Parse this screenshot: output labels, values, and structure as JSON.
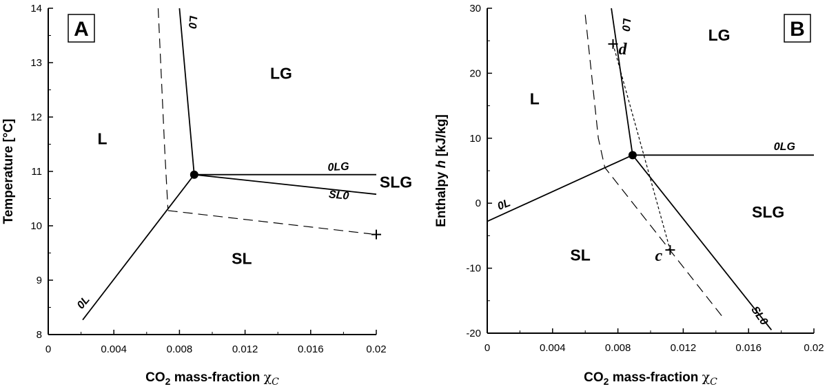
{
  "chart_data": [
    {
      "type": "line",
      "panel_label": "A",
      "xlabel": {
        "prefix": "CO",
        "sub": "2",
        "text": " mass-fraction  ",
        "symbol": "χ",
        "symbol_sub": "C"
      },
      "ylabel": "Temperature [°C]",
      "xlim": [
        0,
        0.02
      ],
      "ylim": [
        8,
        14
      ],
      "xticks": [
        0,
        0.004,
        0.008,
        0.012,
        0.016,
        0.02
      ],
      "xtick_labels": [
        "0",
        "0.004",
        "0.008",
        "0.012",
        "0.016",
        "0.02"
      ],
      "yticks": [
        8,
        9,
        10,
        11,
        12,
        13,
        14
      ],
      "ytick_labels": [
        "8",
        "9",
        "10",
        "11",
        "12",
        "13",
        "14"
      ],
      "series": [
        {
          "name": "L0",
          "style": "solid",
          "x": [
            0.0089,
            0.008
          ],
          "y": [
            10.94,
            14.0
          ]
        },
        {
          "name": "0L",
          "style": "solid",
          "x": [
            0.0089,
            0.0021
          ],
          "y": [
            10.94,
            8.27
          ]
        },
        {
          "name": "0LG",
          "style": "solid",
          "x": [
            0.0089,
            0.02
          ],
          "y": [
            10.94,
            10.94
          ]
        },
        {
          "name": "SL0",
          "style": "solid",
          "x": [
            0.0089,
            0.02
          ],
          "y": [
            10.94,
            10.58
          ]
        },
        {
          "name": "dashed-1",
          "style": "dashed",
          "x": [
            0.0067,
            0.0071,
            0.0073
          ],
          "y": [
            14.0,
            11.4,
            10.3
          ]
        },
        {
          "name": "dashed-2",
          "style": "dashed",
          "x": [
            0.0073,
            0.0197
          ],
          "y": [
            10.28,
            9.85
          ]
        }
      ],
      "triple_point": {
        "x": 0.0089,
        "y": 10.94
      },
      "markers": [
        {
          "x": 0.02,
          "y": 9.84,
          "label": ""
        }
      ],
      "region_labels": [
        {
          "text": "L",
          "x": 0.0033,
          "y": 11.5
        },
        {
          "text": "LG",
          "x": 0.0142,
          "y": 12.7
        },
        {
          "text": "SLG",
          "x": 0.0212,
          "y": 10.7
        },
        {
          "text": "SL",
          "x": 0.0118,
          "y": 9.3
        }
      ],
      "curve_labels": [
        {
          "text": "L0",
          "x": 0.0086,
          "y": 13.75,
          "rotate": 95
        },
        {
          "text": "0L",
          "x": 0.0023,
          "y": 8.55,
          "rotate": -50
        },
        {
          "text": "0LG",
          "x": 0.0177,
          "y": 11.02,
          "rotate": -3
        },
        {
          "text": "SL0",
          "x": 0.0177,
          "y": 10.5,
          "rotate": 5
        }
      ]
    },
    {
      "type": "line",
      "panel_label": "B",
      "xlabel": {
        "prefix": "CO",
        "sub": "2",
        "text": " mass-fraction  ",
        "symbol": "χ",
        "symbol_sub": "C"
      },
      "ylabel": {
        "text": "Enthalpy  ",
        "symbol": "h",
        "unit": "  [kJ/kg]"
      },
      "xlim": [
        0,
        0.02
      ],
      "ylim": [
        -20,
        30
      ],
      "xticks": [
        0,
        0.004,
        0.008,
        0.012,
        0.016,
        0.02
      ],
      "xtick_labels": [
        "0",
        "0.004",
        "0.008",
        "0.012",
        "0.016",
        "0.02"
      ],
      "yticks": [
        -20,
        -10,
        0,
        10,
        20,
        30
      ],
      "ytick_labels": [
        "-20",
        "-10",
        "0",
        "10",
        "20",
        "30"
      ],
      "series": [
        {
          "name": "L0",
          "style": "solid",
          "x": [
            0.0089,
            0.0076
          ],
          "y": [
            7.4,
            30.0
          ]
        },
        {
          "name": "0L",
          "style": "solid",
          "x": [
            0.0089,
            0.0
          ],
          "y": [
            7.4,
            -2.8
          ]
        },
        {
          "name": "0LG",
          "style": "solid",
          "x": [
            0.0089,
            0.02
          ],
          "y": [
            7.4,
            7.4
          ]
        },
        {
          "name": "SL0",
          "style": "solid",
          "x": [
            0.0089,
            0.0174
          ],
          "y": [
            7.4,
            -19.5
          ]
        },
        {
          "name": "dashed-1",
          "style": "dashed",
          "x": [
            0.006,
            0.0068,
            0.0072,
            0.0145
          ],
          "y": [
            29.0,
            10.0,
            5.5,
            -17.8
          ]
        },
        {
          "name": "dotted-cd",
          "style": "dotted",
          "x": [
            0.0077,
            0.0112
          ],
          "y": [
            24.5,
            -7.2
          ]
        }
      ],
      "triple_point": {
        "x": 0.0089,
        "y": 7.4
      },
      "markers": [
        {
          "x": 0.0077,
          "y": 24.5,
          "label": "d"
        },
        {
          "x": 0.0112,
          "y": -7.2,
          "label": "c"
        }
      ],
      "region_labels": [
        {
          "text": "L",
          "x": 0.0029,
          "y": 15.2
        },
        {
          "text": "LG",
          "x": 0.0142,
          "y": 25.0
        },
        {
          "text": "SLG",
          "x": 0.0172,
          "y": -2.2
        },
        {
          "text": "SL",
          "x": 0.0057,
          "y": -8.8
        }
      ],
      "curve_labels": [
        {
          "text": "L0",
          "x": 0.0083,
          "y": 27.5,
          "rotate": 95
        },
        {
          "text": "0L",
          "x": 0.0011,
          "y": -0.7,
          "rotate": -22
        },
        {
          "text": "0LG",
          "x": 0.0182,
          "y": 8.2,
          "rotate": 0
        },
        {
          "text": "SL0",
          "x": 0.0165,
          "y": -17.6,
          "rotate": 55
        }
      ]
    }
  ]
}
